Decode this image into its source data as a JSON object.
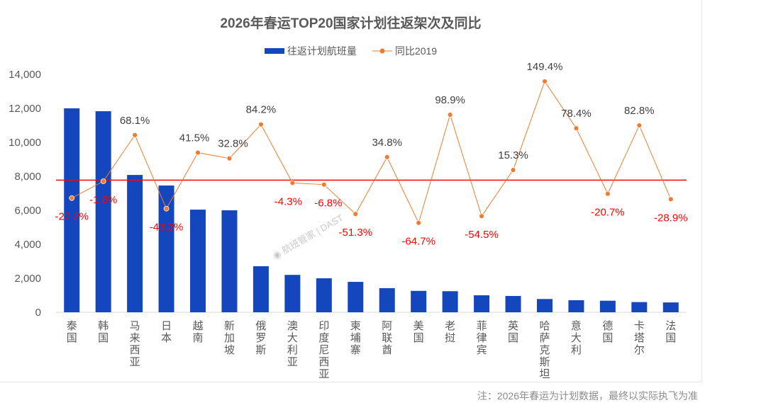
{
  "chart_data": {
    "type": "bar",
    "title": "2026年春运TOP20国家计划往返架次及同比",
    "categories": [
      "泰国",
      "韩国",
      "马来西亚",
      "日本",
      "越南",
      "新加坡",
      "俄罗斯",
      "澳大利亚",
      "印度尼西亚",
      "柬埔寨",
      "阿联酋",
      "美国",
      "老挝",
      "菲律宾",
      "英国",
      "哈萨克斯坦",
      "意大利",
      "德国",
      "卡塔尔",
      "法国"
    ],
    "series": [
      {
        "name": "往返计划航班量",
        "type": "bar",
        "axis": "left",
        "color": "#1446BE",
        "values": [
          12000,
          11830,
          8080,
          7460,
          6040,
          6000,
          2710,
          2200,
          2000,
          1790,
          1420,
          1260,
          1240,
          1000,
          960,
          780,
          710,
          680,
          600,
          580
        ]
      },
      {
        "name": "同比2019",
        "type": "line",
        "axis": "right",
        "color": "#ED7D31",
        "values": [
          -27.2,
          -1.8,
          68.1,
          -43.2,
          41.5,
          32.8,
          84.2,
          -4.3,
          -6.8,
          -51.3,
          34.8,
          -64.7,
          98.9,
          -54.5,
          15.3,
          149.4,
          78.4,
          -20.7,
          82.8,
          -28.9
        ],
        "labels": [
          "-27.2%",
          "-1.8%",
          "68.1%",
          "-43.2%",
          "41.5%",
          "32.8%",
          "84.2%",
          "-4.3%",
          "-6.8%",
          "-51.3%",
          "34.8%",
          "-64.7%",
          "98.9%",
          "-54.5%",
          "15.3%",
          "149.4%",
          "78.4%",
          "-20.7%",
          "82.8%",
          "-28.9%"
        ]
      }
    ],
    "ylim": [
      0,
      14000
    ],
    "yticks": [
      "0",
      "2,000",
      "4,000",
      "6,000",
      "8,000",
      "10,000",
      "12,000",
      "14,000"
    ],
    "y2lim": [
      -200,
      160
    ],
    "y2_visible": false,
    "reference_line": {
      "axis": "right",
      "value": 0,
      "color": "#ff0000"
    },
    "legend_position": "top-center",
    "grid": false,
    "xlabel": "",
    "ylabel": ""
  },
  "footnote": "注：2026年春运为计划数据，最终以实际执飞为准",
  "watermark": "航班管家 | DAST"
}
